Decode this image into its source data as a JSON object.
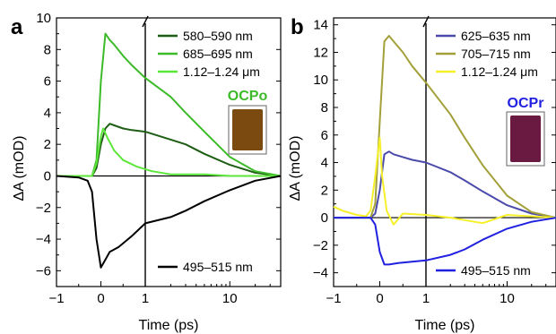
{
  "chart_data": [
    {
      "type": "line",
      "panel": "a",
      "xlabel": "Time (ps)",
      "ylabel": "ΔA (mOD)",
      "xaxis": "linear below 1 ps, logarithmic above 1 ps (axis break at 1)",
      "xticks": [
        "−1",
        "0",
        "1",
        "10"
      ],
      "xlim": [
        -1,
        40
      ],
      "ylim": [
        -7,
        10
      ],
      "yticks": [
        "−6",
        "−4",
        "−2",
        "0",
        "2",
        "4",
        "6",
        "8",
        "10"
      ],
      "sample_label": "OCPo",
      "sample_color": "#7a4a10",
      "series": [
        {
          "name": "580–590 nm",
          "color": "#1e5e14",
          "x": [
            -1,
            -0.5,
            -0.2,
            -0.1,
            0.0,
            0.1,
            0.2,
            0.3,
            0.5,
            0.7,
            1.0,
            2,
            3,
            5,
            10,
            20,
            40
          ],
          "y": [
            0,
            0,
            0,
            0.5,
            2.0,
            3.0,
            3.3,
            3.2,
            3.0,
            2.9,
            2.8,
            2.3,
            2.0,
            1.4,
            0.7,
            0.2,
            0
          ]
        },
        {
          "name": "685–695 nm",
          "color": "#3dba2a",
          "x": [
            -1,
            -0.5,
            -0.2,
            -0.1,
            0.0,
            0.1,
            0.2,
            0.3,
            0.5,
            0.7,
            1.0,
            2,
            3,
            5,
            10,
            20,
            40
          ],
          "y": [
            0,
            0,
            0,
            1.0,
            6.0,
            9.0,
            8.6,
            8.3,
            7.6,
            7.0,
            6.2,
            5.0,
            4.0,
            2.8,
            1.2,
            0.3,
            0
          ]
        },
        {
          "name": "1.12–1.24 μm",
          "color": "#5de63a",
          "x": [
            -1,
            -0.5,
            -0.2,
            -0.1,
            0.0,
            0.05,
            0.15,
            0.3,
            0.5,
            0.8,
            1.2,
            2,
            5,
            10,
            40
          ],
          "y": [
            0,
            0,
            0,
            0.8,
            2.5,
            3.0,
            2.4,
            1.6,
            1.0,
            0.6,
            0.3,
            0.1,
            0.1,
            0,
            0
          ]
        },
        {
          "name": "495–515 nm",
          "color": "#000000",
          "x": [
            -1,
            -0.5,
            -0.3,
            -0.2,
            -0.1,
            0.0,
            0.1,
            0.2,
            0.4,
            0.7,
            1.0,
            2,
            3,
            5,
            10,
            20,
            40
          ],
          "y": [
            0,
            -0.1,
            -0.3,
            -1.0,
            -4.0,
            -5.8,
            -5.3,
            -4.8,
            -4.5,
            -3.8,
            -3.0,
            -2.6,
            -2.2,
            -1.6,
            -0.9,
            -0.3,
            0
          ]
        }
      ]
    },
    {
      "type": "line",
      "panel": "b",
      "xlabel": "Time (ps)",
      "ylabel": "ΔA (mOD)",
      "xaxis": "linear below 1 ps, logarithmic above 1 ps (axis break at 1)",
      "xticks": [
        "−1",
        "0",
        "1",
        "10"
      ],
      "xlim": [
        -1,
        40
      ],
      "ylim": [
        -5,
        14.5
      ],
      "yticks": [
        "−4",
        "−2",
        "0",
        "2",
        "4",
        "6",
        "8",
        "10",
        "12",
        "14"
      ],
      "sample_label": "OCPr",
      "sample_color": "#6a1a40",
      "series": [
        {
          "name": "625–635 nm",
          "color": "#4a4aaa",
          "x": [
            -1,
            -0.5,
            -0.2,
            -0.1,
            0.0,
            0.1,
            0.2,
            0.3,
            0.5,
            0.7,
            1.0,
            2,
            3,
            5,
            10,
            20,
            40
          ],
          "y": [
            0,
            0,
            0,
            0.3,
            2.0,
            4.6,
            4.8,
            4.6,
            4.4,
            4.2,
            4.0,
            3.3,
            2.7,
            1.9,
            0.9,
            0.3,
            0
          ]
        },
        {
          "name": "705–715 nm",
          "color": "#a3a03a",
          "x": [
            -1,
            -0.5,
            -0.2,
            -0.1,
            0.0,
            0.1,
            0.2,
            0.3,
            0.5,
            0.7,
            1.0,
            2,
            3,
            5,
            10,
            20,
            40
          ],
          "y": [
            0,
            0,
            0,
            1.0,
            7.0,
            12.8,
            13.2,
            12.8,
            12.0,
            11.0,
            9.8,
            7.5,
            5.8,
            3.8,
            1.6,
            0.4,
            0
          ]
        },
        {
          "name": "1.12–1.24 μm",
          "color": "#f5f02a",
          "x": [
            -1,
            -0.8,
            -0.5,
            -0.3,
            -0.2,
            -0.1,
            0.0,
            0.05,
            0.15,
            0.3,
            0.5,
            1.0,
            2,
            5,
            10,
            40
          ],
          "y": [
            0.8,
            0.5,
            0.2,
            0.1,
            0.5,
            3.0,
            5.8,
            3.0,
            0.5,
            -0.5,
            0.3,
            0.2,
            0,
            -0.4,
            0.2,
            0
          ]
        },
        {
          "name": "495–515 nm",
          "color": "#2020e0",
          "x": [
            -1,
            -0.5,
            -0.2,
            -0.1,
            0.0,
            0.1,
            0.2,
            0.4,
            0.7,
            1.0,
            2,
            3,
            5,
            10,
            20,
            40
          ],
          "y": [
            0,
            0,
            0,
            -0.5,
            -2.5,
            -3.4,
            -3.4,
            -3.3,
            -3.2,
            -3.1,
            -2.7,
            -2.3,
            -1.6,
            -0.8,
            -0.3,
            0
          ]
        }
      ]
    }
  ]
}
